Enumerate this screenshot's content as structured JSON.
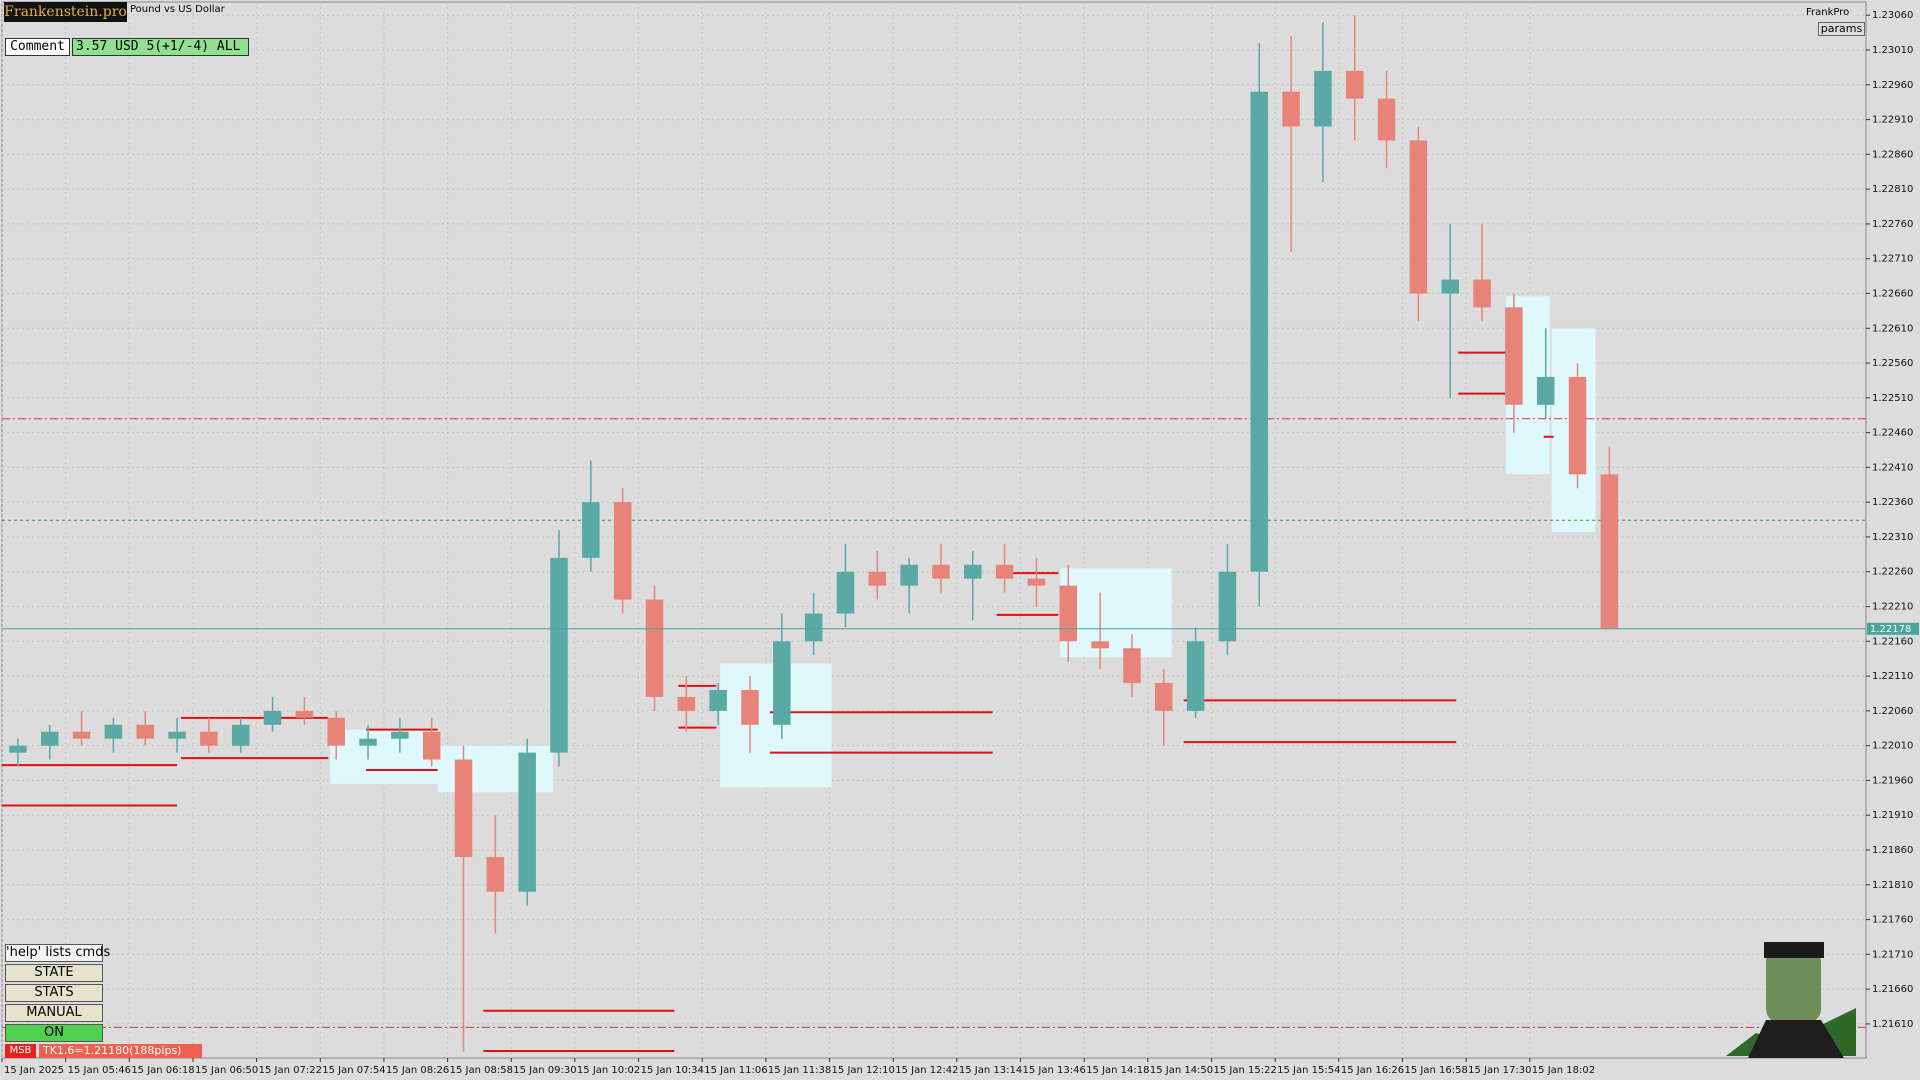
{
  "chart_data": {
    "type": "candlestick",
    "x": [
      0,
      16,
      32,
      48,
      64,
      80,
      96,
      112,
      128,
      144,
      160,
      176,
      192,
      208,
      224,
      240,
      256,
      272,
      288,
      304,
      320,
      336,
      352,
      368,
      384,
      400,
      416,
      432,
      448,
      464,
      480,
      496,
      512,
      528,
      544,
      560,
      576,
      592,
      608,
      624,
      640,
      656,
      672,
      688,
      704,
      720,
      736,
      752,
      768,
      784,
      800
    ],
    "open": [
      1.22,
      1.2201,
      1.2203,
      1.2202,
      1.2204,
      1.2202,
      1.2203,
      1.2201,
      1.2204,
      1.2206,
      1.2205,
      1.2201,
      1.2202,
      1.2203,
      1.2199,
      1.2185,
      1.218,
      1.22,
      1.2228,
      1.2236,
      1.2222,
      1.2208,
      1.2206,
      1.2209,
      1.2204,
      1.2216,
      1.222,
      1.2226,
      1.2224,
      1.2227,
      1.2225,
      1.2227,
      1.2225,
      1.2224,
      1.2216,
      1.2215,
      1.221,
      1.2206,
      1.2216,
      1.2226,
      1.2295,
      1.229,
      1.2298,
      1.2294,
      1.2288,
      1.2266,
      1.2268,
      1.2264,
      1.225,
      1.2254,
      1.224
    ],
    "high": [
      1.2202,
      1.2204,
      1.2206,
      1.2205,
      1.2206,
      1.2205,
      1.2205,
      1.2205,
      1.2208,
      1.2208,
      1.2206,
      1.2204,
      1.2205,
      1.2205,
      1.2201,
      1.2191,
      1.2202,
      1.2232,
      1.2242,
      1.2238,
      1.2224,
      1.2211,
      1.221,
      1.2211,
      1.222,
      1.2223,
      1.223,
      1.2229,
      1.2228,
      1.223,
      1.2229,
      1.223,
      1.2228,
      1.2227,
      1.2223,
      1.2217,
      1.2212,
      1.2218,
      1.223,
      1.2302,
      1.2303,
      1.2305,
      1.2306,
      1.2298,
      1.229,
      1.2276,
      1.2276,
      1.2266,
      1.2261,
      1.2256,
      1.2244
    ],
    "low": [
      1.2198,
      1.2199,
      1.2201,
      1.22,
      1.2201,
      1.22,
      1.22,
      1.22,
      1.2203,
      1.2204,
      1.2199,
      1.2199,
      1.22,
      1.2198,
      1.2157,
      1.2174,
      1.2178,
      1.2198,
      1.2226,
      1.222,
      1.2206,
      1.2203,
      1.2204,
      1.22,
      1.2202,
      1.2214,
      1.2218,
      1.2222,
      1.222,
      1.2223,
      1.2219,
      1.2223,
      1.2221,
      1.2213,
      1.2212,
      1.2208,
      1.2201,
      1.2205,
      1.2214,
      1.2221,
      1.2272,
      1.2282,
      1.2288,
      1.2284,
      1.2262,
      1.2251,
      1.2262,
      1.2246,
      1.2248,
      1.2238,
      1.22178
    ],
    "close": [
      1.2201,
      1.2203,
      1.2202,
      1.2204,
      1.2202,
      1.2203,
      1.2201,
      1.2204,
      1.2206,
      1.2205,
      1.2201,
      1.2202,
      1.2203,
      1.2199,
      1.2185,
      1.218,
      1.22,
      1.2228,
      1.2236,
      1.2222,
      1.2208,
      1.2206,
      1.2209,
      1.2204,
      1.2216,
      1.222,
      1.2226,
      1.2224,
      1.2227,
      1.2225,
      1.2227,
      1.2225,
      1.2224,
      1.2216,
      1.2215,
      1.221,
      1.2206,
      1.2216,
      1.2226,
      1.2295,
      1.229,
      1.2298,
      1.2294,
      1.2288,
      1.2266,
      1.2268,
      1.2264,
      1.225,
      1.2254,
      1.224,
      1.22178
    ],
    "up_color": "#5aa9a5",
    "down_color": "#e8837a",
    "xlim": [
      0,
      937
    ],
    "xticks": [
      {
        "value": 0,
        "label": "15 Jan 2025"
      },
      {
        "value": 32,
        "label": "15 Jan 05:46"
      },
      {
        "value": 64,
        "label": "15 Jan 06:18"
      },
      {
        "value": 96,
        "label": "15 Jan 06:50"
      },
      {
        "value": 128,
        "label": "15 Jan 07:22"
      },
      {
        "value": 160,
        "label": "15 Jan 07:54"
      },
      {
        "value": 192,
        "label": "15 Jan 08:26"
      },
      {
        "value": 224,
        "label": "15 Jan 08:58"
      },
      {
        "value": 256,
        "label": "15 Jan 09:30"
      },
      {
        "value": 288,
        "label": "15 Jan 10:02"
      },
      {
        "value": 320,
        "label": "15 Jan 10:34"
      },
      {
        "value": 352,
        "label": "15 Jan 11:06"
      },
      {
        "value": 384,
        "label": "15 Jan 11:38"
      },
      {
        "value": 416,
        "label": "15 Jan 12:10"
      },
      {
        "value": 448,
        "label": "15 Jan 12:42"
      },
      {
        "value": 480,
        "label": "15 Jan 13:14"
      },
      {
        "value": 512,
        "label": "15 Jan 13:46"
      },
      {
        "value": 544,
        "label": "15 Jan 14:18"
      },
      {
        "value": 576,
        "label": "15 Jan 14:50"
      },
      {
        "value": 608,
        "label": "15 Jan 15:22"
      },
      {
        "value": 640,
        "label": "15 Jan 15:54"
      },
      {
        "value": 672,
        "label": "15 Jan 16:26"
      },
      {
        "value": 704,
        "label": "15 Jan 16:58"
      },
      {
        "value": 736,
        "label": "15 Jan 17:30"
      },
      {
        "value": 768,
        "label": "15 Jan 18:02"
      }
    ],
    "ylim": [
      1.21561,
      1.23079
    ],
    "yticks": [
      {
        "value": 1.2161,
        "label": "1.21610"
      },
      {
        "value": 1.2166,
        "label": "1.21660"
      },
      {
        "value": 1.2171,
        "label": "1.21710"
      },
      {
        "value": 1.2176,
        "label": "1.21760"
      },
      {
        "value": 1.2181,
        "label": "1.21810"
      },
      {
        "value": 1.2186,
        "label": "1.21860"
      },
      {
        "value": 1.2191,
        "label": "1.21910"
      },
      {
        "value": 1.2196,
        "label": "1.21960"
      },
      {
        "value": 1.2201,
        "label": "1.22010"
      },
      {
        "value": 1.2206,
        "label": "1.22060"
      },
      {
        "value": 1.2211,
        "label": "1.22110"
      },
      {
        "value": 1.2216,
        "label": "1.22160"
      },
      {
        "value": 1.2221,
        "label": "1.22210"
      },
      {
        "value": 1.2226,
        "label": "1.22260"
      },
      {
        "value": 1.2231,
        "label": "1.22310"
      },
      {
        "value": 1.2236,
        "label": "1.22360"
      },
      {
        "value": 1.2241,
        "label": "1.22410"
      },
      {
        "value": 1.2246,
        "label": "1.22460"
      },
      {
        "value": 1.2251,
        "label": "1.22510"
      },
      {
        "value": 1.2256,
        "label": "1.22560"
      },
      {
        "value": 1.2261,
        "label": "1.22610"
      },
      {
        "value": 1.2266,
        "label": "1.22660"
      },
      {
        "value": 1.2271,
        "label": "1.22710"
      },
      {
        "value": 1.2276,
        "label": "1.22760"
      },
      {
        "value": 1.2281,
        "label": "1.22810"
      },
      {
        "value": 1.2286,
        "label": "1.22860"
      },
      {
        "value": 1.2291,
        "label": "1.22910"
      },
      {
        "value": 1.2296,
        "label": "1.22960"
      },
      {
        "value": 1.2301,
        "label": "1.23010"
      },
      {
        "value": 1.2306,
        "label": "1.23060"
      }
    ],
    "grid": true,
    "hlines": [
      {
        "value": 1.2248,
        "color": "#e03030",
        "style": "dashdot"
      },
      {
        "value": 1.22334,
        "color": "#3a9a3a",
        "style": "dotted"
      },
      {
        "value": 1.21605,
        "color": "#e03030",
        "style": "dashdot"
      }
    ],
    "last_price": {
      "value": 1.22178,
      "label": "1.22178",
      "color": "#4aa3a0"
    },
    "level_color": "#e01010",
    "levels": [
      {
        "x0": 0,
        "x1": 88,
        "value": 1.21924
      },
      {
        "x0": 0,
        "x1": 88,
        "value": 1.21982
      },
      {
        "x0": 90,
        "x1": 164,
        "value": 1.2205
      },
      {
        "x0": 90,
        "x1": 164,
        "value": 1.21992
      },
      {
        "x0": 183,
        "x1": 219,
        "value": 1.22033
      },
      {
        "x0": 183,
        "x1": 219,
        "value": 1.21975
      },
      {
        "x0": 242,
        "x1": 338,
        "value": 1.21629
      },
      {
        "x0": 242,
        "x1": 338,
        "value": 1.21571
      },
      {
        "x0": 340,
        "x1": 359,
        "value": 1.22096
      },
      {
        "x0": 340,
        "x1": 359,
        "value": 1.22036
      },
      {
        "x0": 386,
        "x1": 498,
        "value": 1.22058
      },
      {
        "x0": 386,
        "x1": 498,
        "value": 1.22
      },
      {
        "x0": 500,
        "x1": 531,
        "value": 1.22258
      },
      {
        "x0": 500,
        "x1": 531,
        "value": 1.22198
      },
      {
        "x0": 594,
        "x1": 731,
        "value": 1.22075
      },
      {
        "x0": 594,
        "x1": 731,
        "value": 1.22015
      },
      {
        "x0": 732,
        "x1": 756,
        "value": 1.22575
      },
      {
        "x0": 732,
        "x1": 756,
        "value": 1.22516
      },
      {
        "x0": 775,
        "x1": 780,
        "value": 1.22454
      }
    ],
    "zone_color": "#dff8fb",
    "zones": [
      {
        "x0": 165,
        "x1": 219,
        "y0": 1.21955,
        "y1": 1.22033
      },
      {
        "x0": 219,
        "x1": 277,
        "y0": 1.21943,
        "y1": 1.2201
      },
      {
        "x0": 361,
        "x1": 417,
        "y0": 1.2195,
        "y1": 1.22128
      },
      {
        "x0": 532,
        "x1": 588,
        "y0": 1.22137,
        "y1": 1.22265
      },
      {
        "x0": 756,
        "x1": 778,
        "y0": 1.224,
        "y1": 1.22656
      },
      {
        "x0": 779,
        "x1": 801,
        "y0": 1.22317,
        "y1": 1.2261
      }
    ]
  },
  "ui": {
    "brand": "Frankenstein.pro",
    "symbol": "Pound vs US Dollar",
    "comment_label": "Comment",
    "comment_value": "3.57 USD 5(+1/-4) ALL",
    "user": "FrankPro",
    "params": "params",
    "buttons": [
      "'help' lists cmds",
      "STATE",
      "STATS",
      "MANUAL",
      "ON"
    ],
    "status_tag": "MSB",
    "status_text": "TK1.6=1.21180(188pips)"
  }
}
